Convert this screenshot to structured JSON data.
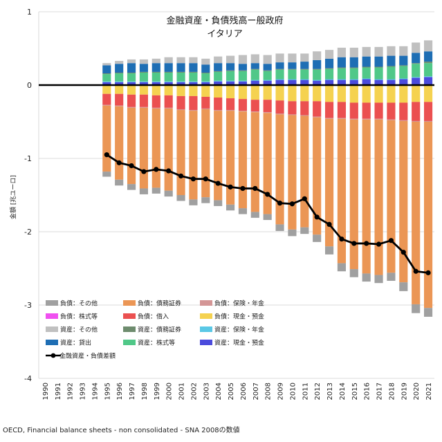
{
  "chart_data": {
    "type": "bar",
    "stacked": true,
    "title": "金融資産・負債残高ー般政府",
    "subtitle": "イタリア",
    "ylabel": "金額 [兆ユーロ]",
    "xlabel": "",
    "ylim": [
      -4,
      1
    ],
    "yticks": [
      1,
      0,
      -1,
      -2,
      -3,
      -4
    ],
    "grid": true,
    "legend_position": "bottom-left",
    "categories": [
      "1990",
      "1991",
      "1992",
      "1993",
      "1994",
      "1995",
      "1996",
      "1997",
      "1998",
      "1999",
      "2000",
      "2001",
      "2002",
      "2003",
      "2004",
      "2005",
      "2006",
      "2007",
      "2008",
      "2009",
      "2010",
      "2011",
      "2012",
      "2013",
      "2014",
      "2015",
      "2016",
      "2017",
      "2018",
      "2019",
      "2020",
      "2021"
    ],
    "series": [
      {
        "name": "資産：現金・預金",
        "color": "#4b4bdc",
        "values": [
          null,
          null,
          null,
          null,
          null,
          0.04,
          0.04,
          0.04,
          0.04,
          0.04,
          0.04,
          0.04,
          0.04,
          0.04,
          0.05,
          0.05,
          0.05,
          0.06,
          0.06,
          0.07,
          0.07,
          0.07,
          0.06,
          0.07,
          0.07,
          0.07,
          0.08,
          0.07,
          0.07,
          0.08,
          0.1,
          0.11
        ]
      },
      {
        "name": "資産：保険・年金",
        "color": "#5ac8e6",
        "values": [
          null,
          null,
          null,
          null,
          null,
          0.01,
          0.01,
          0.01,
          0.01,
          0.01,
          0.01,
          0.01,
          0.01,
          0.01,
          0.01,
          0.01,
          0.01,
          0.01,
          0.01,
          0.01,
          0.01,
          0.01,
          0.01,
          0.01,
          0.01,
          0.01,
          0.01,
          0.01,
          0.01,
          0.01,
          0.01,
          0.01
        ]
      },
      {
        "name": "資産：株式等",
        "color": "#50c888",
        "values": [
          null,
          null,
          null,
          null,
          null,
          0.1,
          0.11,
          0.11,
          0.12,
          0.12,
          0.12,
          0.12,
          0.12,
          0.11,
          0.12,
          0.13,
          0.13,
          0.14,
          0.12,
          0.13,
          0.13,
          0.13,
          0.14,
          0.14,
          0.15,
          0.15,
          0.15,
          0.16,
          0.17,
          0.17,
          0.18,
          0.18
        ]
      },
      {
        "name": "資産：債務証券",
        "color": "#6e8c6e",
        "values": [
          null,
          null,
          null,
          null,
          null,
          0.01,
          0.01,
          0.01,
          0.01,
          0.01,
          0.01,
          0.01,
          0.01,
          0.01,
          0.01,
          0.01,
          0.01,
          0.01,
          0.01,
          0.01,
          0.01,
          0.01,
          0.01,
          0.01,
          0.01,
          0.01,
          0.01,
          0.01,
          0.01,
          0.01,
          0.01,
          0.02
        ]
      },
      {
        "name": "資産：貸出",
        "color": "#1e6eb4",
        "values": [
          null,
          null,
          null,
          null,
          null,
          0.11,
          0.12,
          0.13,
          0.11,
          0.12,
          0.12,
          0.12,
          0.12,
          0.11,
          0.11,
          0.1,
          0.09,
          0.08,
          0.09,
          0.09,
          0.09,
          0.1,
          0.12,
          0.13,
          0.14,
          0.14,
          0.14,
          0.14,
          0.14,
          0.13,
          0.14,
          0.14
        ]
      },
      {
        "name": "資産：その他",
        "color": "#c0c0c0",
        "values": [
          null,
          null,
          null,
          null,
          null,
          0.03,
          0.04,
          0.05,
          0.06,
          0.06,
          0.08,
          0.08,
          0.08,
          0.08,
          0.09,
          0.1,
          0.12,
          0.12,
          0.12,
          0.12,
          0.12,
          0.11,
          0.12,
          0.12,
          0.13,
          0.13,
          0.13,
          0.13,
          0.13,
          0.13,
          0.14,
          0.15
        ]
      },
      {
        "name": "負債：現金・預金",
        "color": "#f5d250",
        "values": [
          null,
          null,
          null,
          null,
          null,
          -0.12,
          -0.12,
          -0.13,
          -0.13,
          -0.14,
          -0.14,
          -0.15,
          -0.15,
          -0.16,
          -0.17,
          -0.18,
          -0.19,
          -0.2,
          -0.2,
          -0.21,
          -0.22,
          -0.22,
          -0.22,
          -0.23,
          -0.23,
          -0.24,
          -0.24,
          -0.24,
          -0.24,
          -0.24,
          -0.23,
          -0.23
        ]
      },
      {
        "name": "負債：借入",
        "color": "#eb5050",
        "values": [
          null,
          null,
          null,
          null,
          null,
          -0.15,
          -0.16,
          -0.17,
          -0.17,
          -0.17,
          -0.17,
          -0.18,
          -0.19,
          -0.16,
          -0.17,
          -0.16,
          -0.16,
          -0.16,
          -0.17,
          -0.18,
          -0.18,
          -0.19,
          -0.21,
          -0.22,
          -0.22,
          -0.22,
          -0.22,
          -0.22,
          -0.23,
          -0.24,
          -0.26,
          -0.26
        ]
      },
      {
        "name": "負債：保険・年金",
        "color": "#d49696",
        "values": [
          null,
          null,
          null,
          null,
          null,
          -0.01,
          -0.01,
          -0.01,
          -0.01,
          -0.01,
          -0.01,
          -0.01,
          -0.01,
          -0.01,
          -0.01,
          -0.01,
          -0.01,
          -0.01,
          -0.01,
          -0.01,
          -0.01,
          -0.01,
          -0.01,
          -0.01,
          -0.01,
          -0.01,
          -0.01,
          -0.01,
          -0.01,
          -0.01,
          -0.01,
          -0.01
        ]
      },
      {
        "name": "負債：債務証券",
        "color": "#eb9655",
        "values": [
          null,
          null,
          null,
          null,
          null,
          -0.9,
          -1.0,
          -1.04,
          -1.1,
          -1.08,
          -1.12,
          -1.16,
          -1.21,
          -1.2,
          -1.22,
          -1.28,
          -1.32,
          -1.36,
          -1.38,
          -1.5,
          -1.56,
          -1.52,
          -1.6,
          -1.74,
          -1.97,
          -2.04,
          -2.1,
          -2.12,
          -2.08,
          -2.2,
          -2.49,
          -2.54
        ]
      },
      {
        "name": "負債：株式等",
        "color": "#f050f0",
        "values": [
          null,
          null,
          null,
          null,
          null,
          0,
          0,
          0,
          0,
          0,
          0,
          0,
          0,
          0,
          0,
          0,
          0,
          0,
          0,
          0,
          0,
          0,
          0,
          0,
          0,
          0,
          0,
          0,
          0,
          0,
          0,
          0
        ]
      },
      {
        "name": "負債：その他",
        "color": "#a0a0a0",
        "values": [
          null,
          null,
          null,
          null,
          null,
          -0.07,
          -0.08,
          -0.08,
          -0.08,
          -0.08,
          -0.08,
          -0.08,
          -0.08,
          -0.08,
          -0.08,
          -0.08,
          -0.08,
          -0.08,
          -0.08,
          -0.09,
          -0.09,
          -0.09,
          -0.1,
          -0.11,
          -0.11,
          -0.11,
          -0.11,
          -0.11,
          -0.11,
          -0.12,
          -0.12,
          -0.12
        ]
      }
    ],
    "line": {
      "name": "金融資産・負債差額",
      "color": "#000000",
      "values": [
        null,
        null,
        null,
        null,
        null,
        -0.95,
        -1.06,
        -1.1,
        -1.18,
        -1.15,
        -1.17,
        -1.24,
        -1.28,
        -1.28,
        -1.34,
        -1.39,
        -1.41,
        -1.41,
        -1.49,
        -1.61,
        -1.62,
        -1.55,
        -1.8,
        -1.9,
        -2.1,
        -2.16,
        -2.16,
        -2.17,
        -2.12,
        -2.28,
        -2.54,
        -2.56
      ]
    },
    "legend": [
      {
        "label": "負債：その他",
        "color": "#a0a0a0",
        "kind": "bar"
      },
      {
        "label": "負債：債務証券",
        "color": "#eb9655",
        "kind": "bar"
      },
      {
        "label": "負債：保険・年金",
        "color": "#d49696",
        "kind": "bar"
      },
      {
        "label": "負債：株式等",
        "color": "#f050f0",
        "kind": "bar"
      },
      {
        "label": "負債：借入",
        "color": "#eb5050",
        "kind": "bar"
      },
      {
        "label": "負債：現金・預金",
        "color": "#f5d250",
        "kind": "bar"
      },
      {
        "label": "資産：その他",
        "color": "#c0c0c0",
        "kind": "bar"
      },
      {
        "label": "資産：債務証券",
        "color": "#6e8c6e",
        "kind": "bar"
      },
      {
        "label": "資産：保険・年金",
        "color": "#5ac8e6",
        "kind": "bar"
      },
      {
        "label": "資産：貸出",
        "color": "#1e6eb4",
        "kind": "bar"
      },
      {
        "label": "資産：株式等",
        "color": "#50c888",
        "kind": "bar"
      },
      {
        "label": "資産：現金・預金",
        "color": "#4b4bdc",
        "kind": "bar"
      },
      {
        "label": "金融資産・負債差額",
        "color": "#000000",
        "kind": "line"
      }
    ]
  },
  "source_note": "OECD, Financial balance sheets - non consolidated - SNA 2008の数値"
}
